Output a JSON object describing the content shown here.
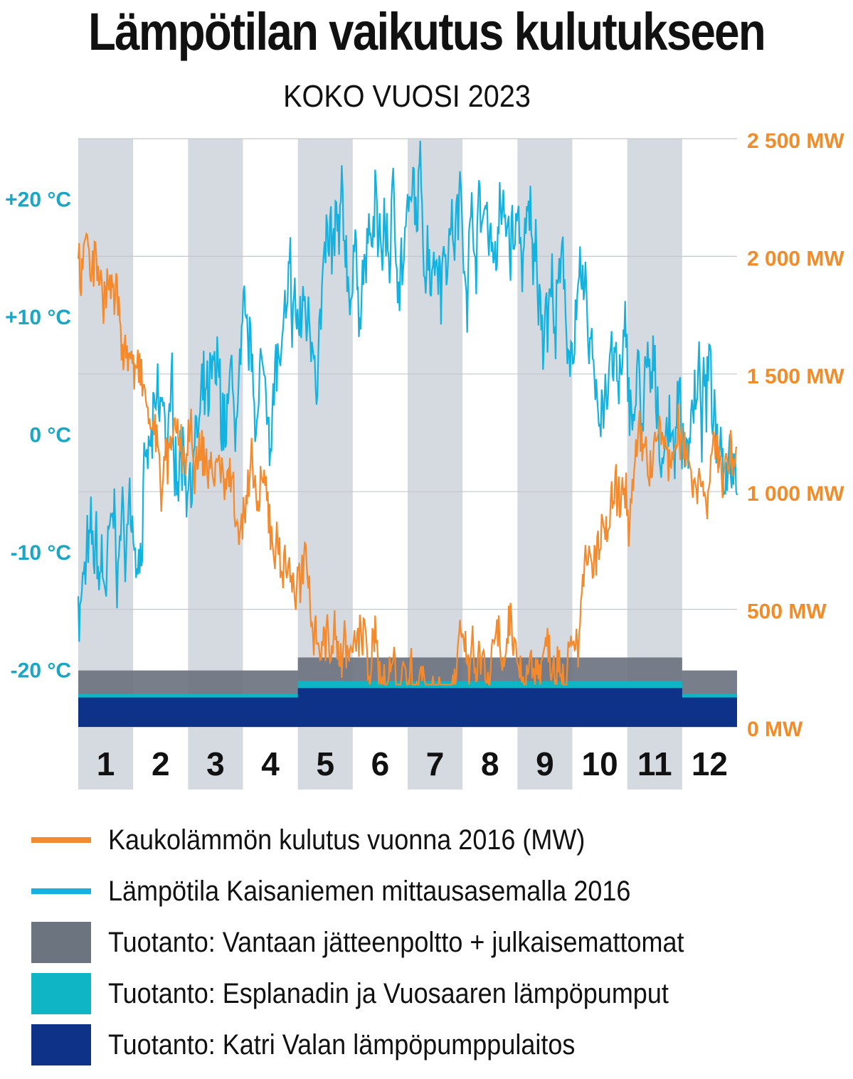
{
  "title": "Lämpötilan vaikutus kulutukseen",
  "subtitle": "KOKO VUOSI 2023",
  "chart_data": {
    "type": "line",
    "x_categories": [
      "1",
      "2",
      "3",
      "4",
      "5",
      "6",
      "7",
      "8",
      "9",
      "10",
      "11",
      "12"
    ],
    "left_axis": {
      "unit": "°C",
      "ticks": [
        "+20 °C",
        "+10 °C",
        "0 °C",
        "-10 °C",
        "-20 °C"
      ],
      "tick_values": [
        20,
        10,
        0,
        -10,
        -20
      ],
      "range": [
        -25,
        25
      ],
      "color": "#1aa6c4"
    },
    "right_axis": {
      "unit": "MW",
      "ticks": [
        "2 500 MW",
        "2 000 MW",
        "1 500 MW",
        "1 000 MW",
        "500 MW",
        "0 MW"
      ],
      "tick_values": [
        2500,
        2000,
        1500,
        1000,
        500,
        0
      ],
      "range": [
        0,
        2500
      ],
      "color": "#f28c28"
    },
    "grid": true,
    "month_shading": "alternating",
    "series": [
      {
        "name": "Kaukolämmön kulutus vuonna 2016 (MW)",
        "axis": "right",
        "kind": "line",
        "color": "#f48a2e",
        "monthly_mean": [
          1950,
          1100,
          1100,
          850,
          380,
          270,
          220,
          210,
          300,
          700,
          1150,
          1130
        ]
      },
      {
        "name": "Lämpötila Kaisaniemen mittausasemalla 2016",
        "axis": "left",
        "kind": "line",
        "color": "#15b2e0",
        "monthly_mean": [
          -13,
          -1,
          0,
          4,
          12,
          16,
          18,
          18,
          13,
          5,
          1,
          2
        ]
      },
      {
        "name": "Tuotanto: Vantaan jätteenpoltto + julkaisemattomat",
        "axis": "right",
        "kind": "area",
        "color": "#6c7480",
        "monthly_top": [
          240,
          240,
          240,
          240,
          295,
          295,
          295,
          295,
          295,
          295,
          295,
          240
        ]
      },
      {
        "name": "Tuotanto: Esplanadin ja Vuosaaren lämpöpumput",
        "axis": "right",
        "kind": "area",
        "color": "#0fb5c4",
        "monthly_top": [
          140,
          140,
          140,
          140,
          195,
          195,
          195,
          195,
          195,
          195,
          195,
          140
        ]
      },
      {
        "name": "Tuotanto: Katri Valan lämpöpumppulaitos",
        "axis": "right",
        "kind": "area",
        "color": "#0f3289",
        "monthly_top": [
          125,
          125,
          125,
          125,
          165,
          165,
          165,
          165,
          165,
          165,
          165,
          125
        ]
      }
    ]
  },
  "legend": [
    {
      "label": "Kaukolämmön kulutus vuonna 2016 (MW)",
      "type": "line",
      "color": "#f48a2e"
    },
    {
      "label": "Lämpötila Kaisaniemen mittausasemalla 2016",
      "type": "line",
      "color": "#15b2e0"
    },
    {
      "label": "Tuotanto: Vantaan jätteenpoltto + julkaisemattomat",
      "type": "box",
      "color": "#6c7480"
    },
    {
      "label": "Tuotanto: Esplanadin ja Vuosaaren lämpöpumput",
      "type": "box",
      "color": "#0fb5c4"
    },
    {
      "label": "Tuotanto: Katri Valan lämpöpumppulaitos",
      "type": "box",
      "color": "#0f3289"
    }
  ]
}
